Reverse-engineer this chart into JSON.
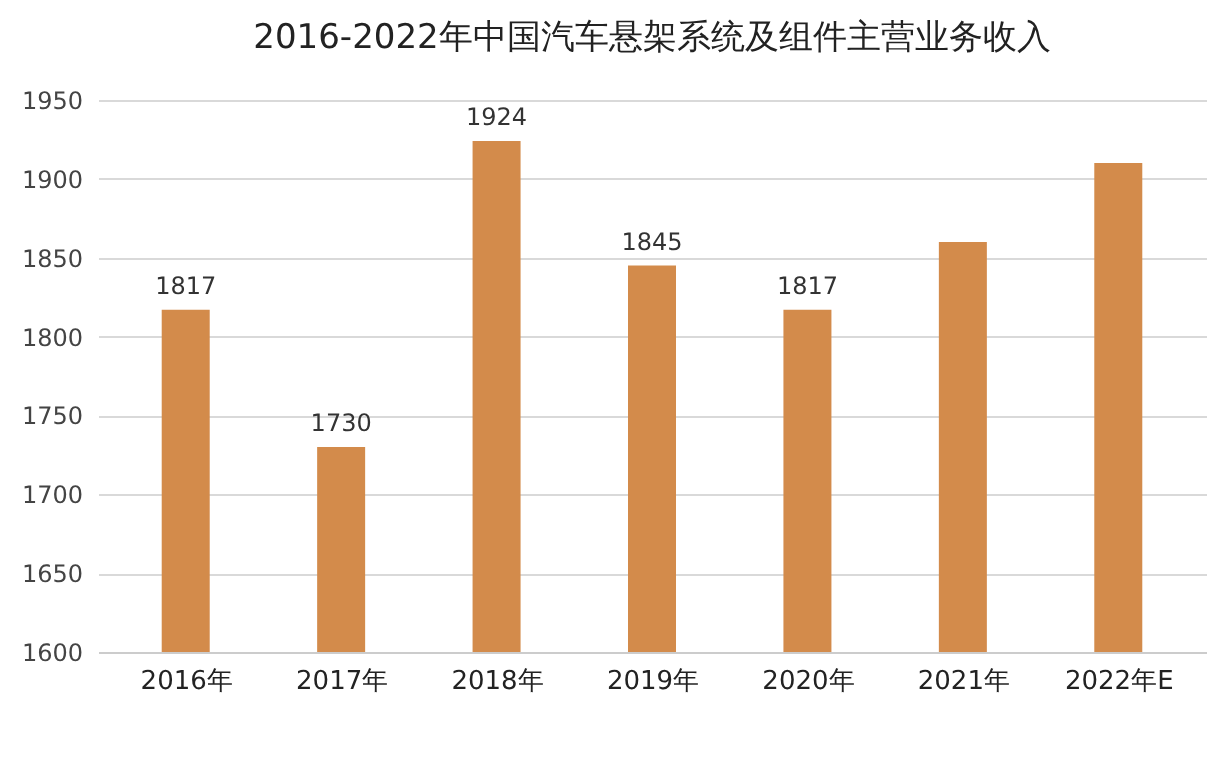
{
  "chart_data": {
    "type": "bar",
    "title": "2016-2022年中国汽车悬架系统及组件主营业务收入",
    "categories": [
      "2016年",
      "2017年",
      "2018年",
      "2019年",
      "2020年",
      "2021年",
      "2022年E"
    ],
    "values": [
      1817,
      1730,
      1924,
      1845,
      1817,
      1860,
      1910
    ],
    "value_labels": [
      "1817",
      "1730",
      "1924",
      "1845",
      "1817",
      null,
      null
    ],
    "color": "#d38b4b",
    "ylim": [
      1600,
      1950
    ],
    "yticks": [
      1600,
      1650,
      1700,
      1750,
      1800,
      1850,
      1900,
      1950
    ],
    "grid": "y"
  }
}
